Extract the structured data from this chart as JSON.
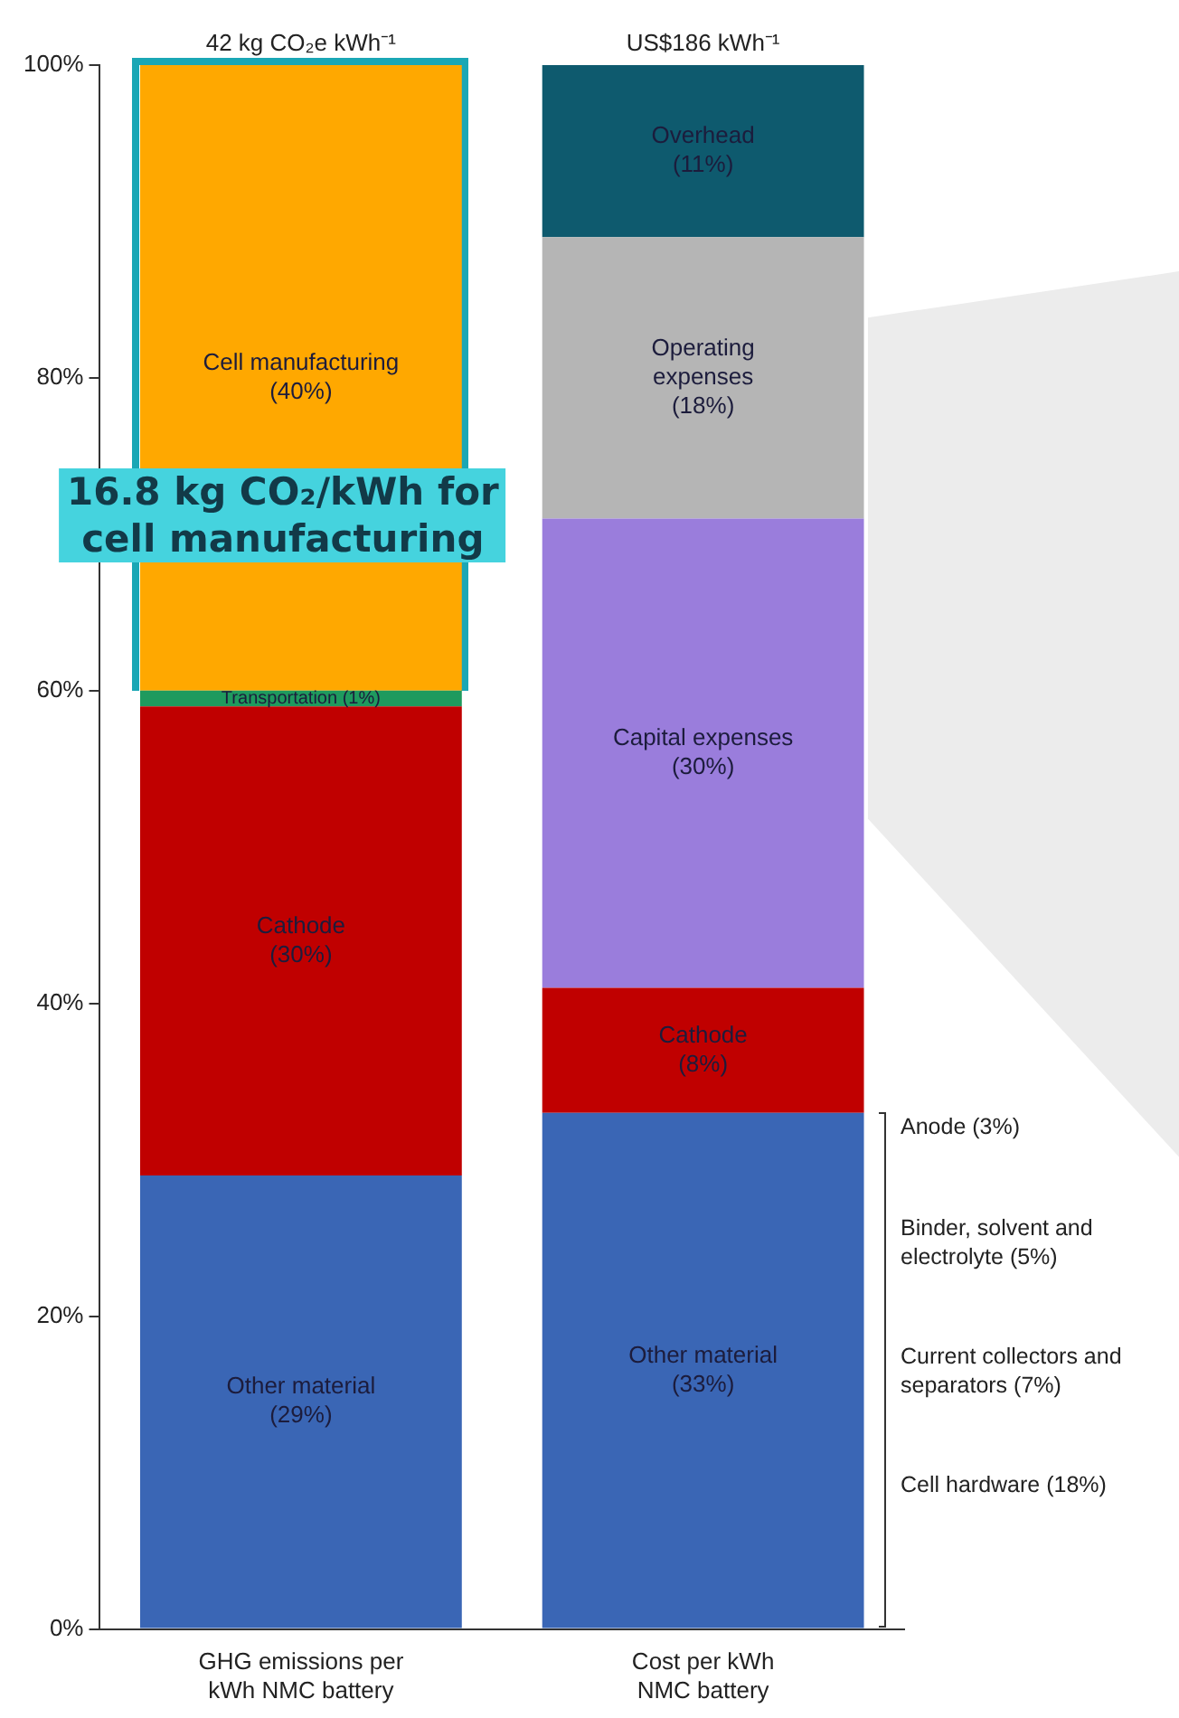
{
  "chart_data": {
    "type": "bar",
    "stacked": true,
    "categories": [
      "GHG emissions per kWh NMC battery",
      "Cost per kWh NMC battery"
    ],
    "series": [
      {
        "name": "Other material",
        "color": "#3a66b5",
        "values": [
          29,
          33
        ],
        "value_labels": [
          "(29%)",
          "(33%)"
        ]
      },
      {
        "name": "Cathode",
        "color": "#c00000",
        "values": [
          30,
          8
        ],
        "value_labels": [
          "(30%)",
          "(8%)"
        ]
      },
      {
        "name": "Transportation",
        "color": "#1f9a5e",
        "values": [
          1,
          null
        ],
        "value_labels": [
          "(1%)",
          null
        ]
      },
      {
        "name": "Cell manufacturing",
        "color": "#ffa800",
        "values": [
          40,
          null
        ],
        "value_labels": [
          "(40%)",
          null
        ]
      },
      {
        "name": "Capital expenses",
        "color": "#9a7ddc",
        "values": [
          null,
          30
        ],
        "value_labels": [
          null,
          "(30%)"
        ]
      },
      {
        "name": "Operating expenses",
        "color": "#b5b5b5",
        "values": [
          null,
          18
        ],
        "value_labels": [
          null,
          "(18%)"
        ]
      },
      {
        "name": "Overhead",
        "color": "#0e5a6e",
        "values": [
          null,
          11
        ],
        "value_labels": [
          null,
          "(11%)"
        ]
      }
    ],
    "ylim": [
      0,
      100
    ],
    "yticks": [
      {
        "value": 0,
        "label": "0%"
      },
      {
        "value": 20,
        "label": "20%"
      },
      {
        "value": 40,
        "label": "40%"
      },
      {
        "value": 60,
        "label": "60%"
      },
      {
        "value": 80,
        "label": "80%"
      },
      {
        "value": 100,
        "label": "100%"
      }
    ],
    "annotations": [
      {
        "text": "42 kg CO₂e kWh⁻¹",
        "x": "GHG emissions per kWh NMC battery",
        "y": 100
      },
      {
        "text": "US$186 kWh⁻¹",
        "x": "Cost per kWh NMC battery",
        "y": 100
      },
      "16.8 kg CO₂/kWh for cell manufacturing",
      "Anode (3%)",
      "Binder, solvent and electrolyte (5%)",
      "Current collectors and separators (7%)",
      "Cell hardware (18%)"
    ],
    "legend": false,
    "grid": false
  }
}
